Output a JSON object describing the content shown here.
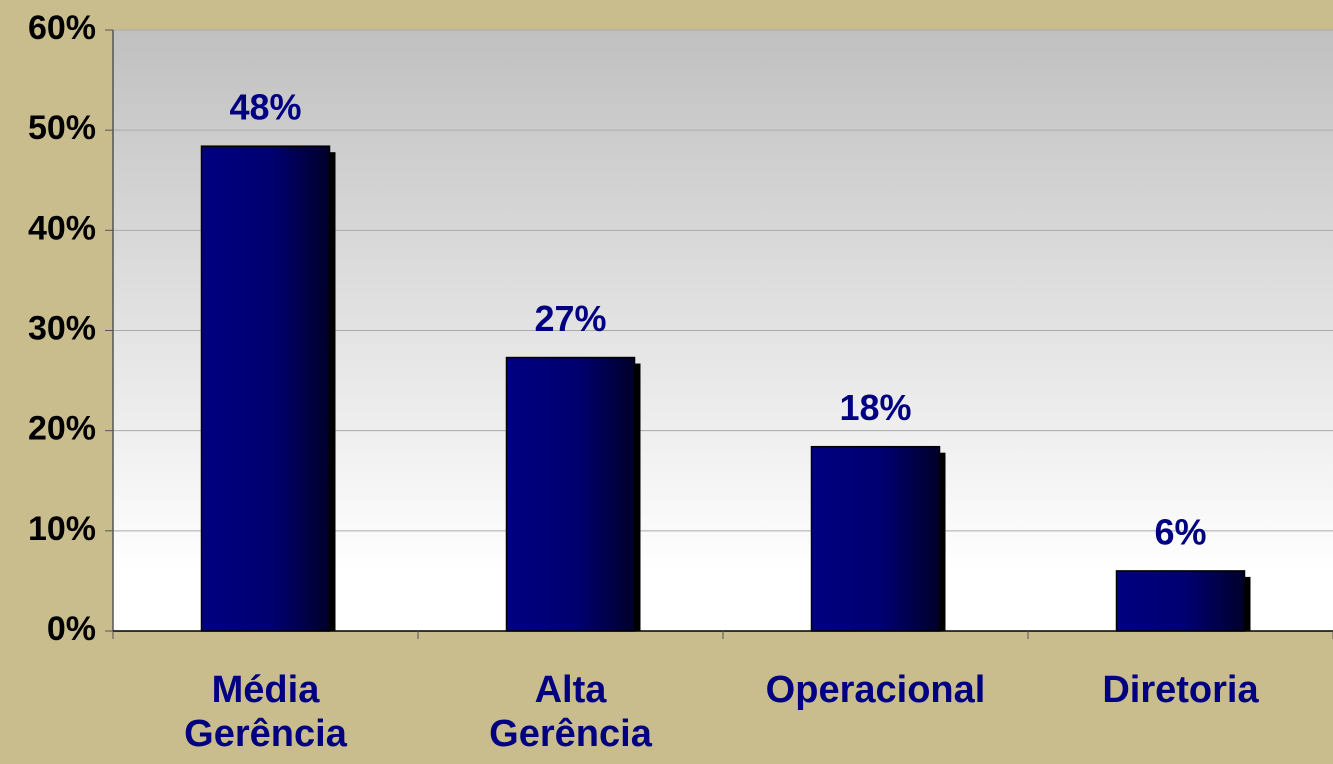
{
  "chart_data": {
    "type": "bar",
    "categories": [
      "Média Gerência",
      "Alta Gerência",
      "Operacional",
      "Diretoria"
    ],
    "values": [
      48.4,
      27.3,
      18.4,
      6.0
    ],
    "value_labels": [
      "48%",
      "27%",
      "18%",
      "6%"
    ],
    "color": "#000080",
    "ylim": [
      0,
      60
    ],
    "yticks": [
      {
        "value": 0,
        "label": "0%"
      },
      {
        "value": 10,
        "label": "10%"
      },
      {
        "value": 20,
        "label": "20%"
      },
      {
        "value": 30,
        "label": "30%"
      },
      {
        "value": 40,
        "label": "40%"
      },
      {
        "value": 50,
        "label": "50%"
      },
      {
        "value": 60,
        "label": "60%"
      }
    ],
    "grid": true
  }
}
